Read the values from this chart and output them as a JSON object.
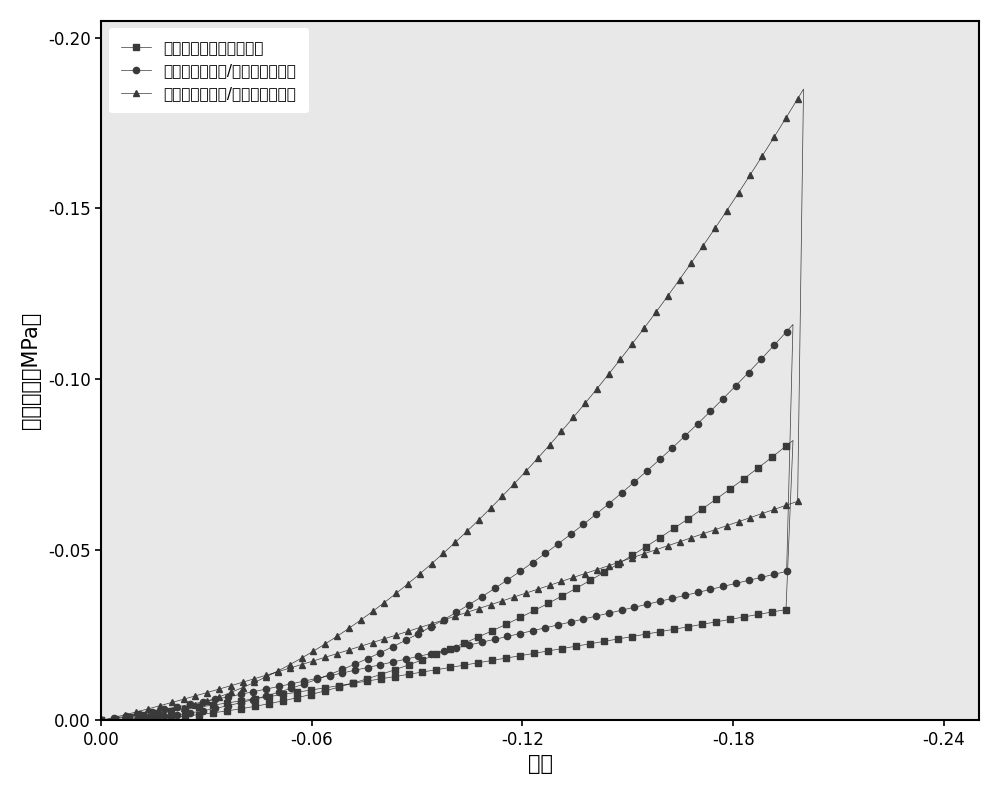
{
  "title": "",
  "xlabel": "应变",
  "ylabel": "压缩强度（MPa）",
  "xlim": [
    0.0,
    -0.24
  ],
  "ylim": [
    0.0,
    -0.2
  ],
  "xticks": [
    0.0,
    -0.06,
    -0.12,
    -0.18,
    -0.24
  ],
  "yticks": [
    0.0,
    -0.05,
    -0.1,
    -0.15,
    -0.2
  ],
  "legend": [
    "传统挤出聚烯烃弹性体管",
    "传统挤出蒙脱土/聚烯烃弹性体管",
    "旋转挤出蒙脱土/聚烯烃弹性体管"
  ],
  "marker_color": "#3a3a3a",
  "markers": [
    "s",
    "o",
    "^"
  ],
  "s1_strain_max": -0.197,
  "s1_stress_max": -0.082,
  "s2_strain_max": -0.197,
  "s2_stress_max": -0.116,
  "s3_strain_max": -0.2,
  "s3_stress_max": -0.185,
  "background_color": "#ffffff",
  "plot_bg_color": "#e8e8e8",
  "marker_size": 4.5,
  "line_width": 0.5,
  "font_size_label": 15,
  "font_size_tick": 12,
  "font_size_legend": 11
}
